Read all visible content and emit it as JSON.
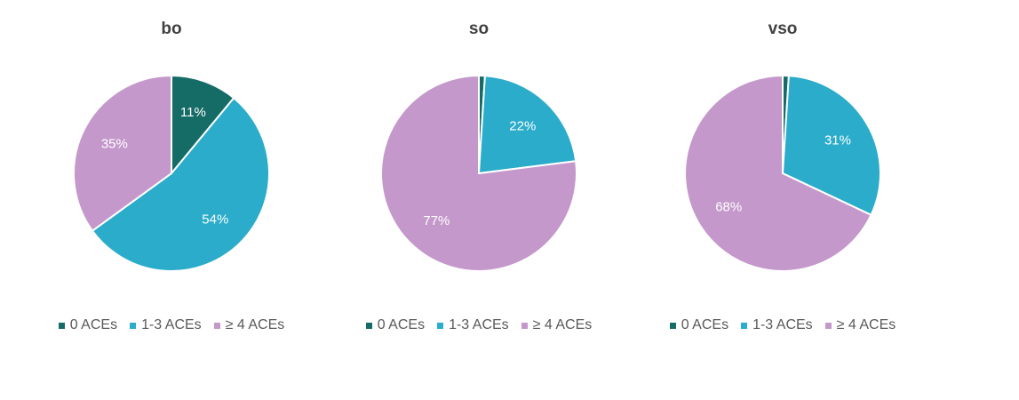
{
  "colors": {
    "aces_0": "#156b66",
    "aces_1_3": "#2aacca",
    "aces_4plus": "#c598cc"
  },
  "legend_labels": [
    "0 ACEs",
    "1-3 ACEs",
    "≥ 4 ACEs"
  ],
  "chart_data": [
    {
      "type": "pie",
      "title": "bo",
      "categories": [
        "0 ACEs",
        "1-3 ACEs",
        "≥ 4 ACEs"
      ],
      "values": [
        11,
        54,
        35
      ],
      "data_labels": [
        "11%",
        "54%",
        "35%"
      ],
      "legend": "bottom"
    },
    {
      "type": "pie",
      "title": "so",
      "categories": [
        "0 ACEs",
        "1-3 ACEs",
        "≥ 4 ACEs"
      ],
      "values": [
        1,
        22,
        77
      ],
      "data_labels": [
        "",
        "22%",
        "77%"
      ],
      "legend": "bottom"
    },
    {
      "type": "pie",
      "title": "vso",
      "categories": [
        "0 ACEs",
        "1-3 ACEs",
        "≥ 4 ACEs"
      ],
      "values": [
        1,
        31,
        68
      ],
      "data_labels": [
        "",
        "31%",
        "68%"
      ],
      "legend": "bottom"
    }
  ]
}
